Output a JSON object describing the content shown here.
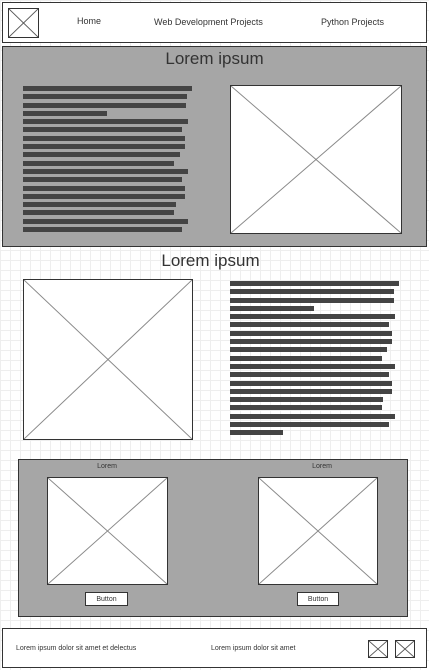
{
  "header": {
    "logo_icon": "image-placeholder-icon",
    "nav": {
      "home": "Home",
      "web_dev": "Web Development Projects",
      "python": "Python Projects"
    }
  },
  "section1": {
    "title": "Lorem ipsum"
  },
  "section2": {
    "title": "Lorem ipsum"
  },
  "cards": [
    {
      "label": "Lorem",
      "button": "Button"
    },
    {
      "label": "Lorem",
      "button": "Button"
    }
  ],
  "footer": {
    "text_left": "Lorem ipsum dolor sit amet et delectus",
    "text_center": "Lorem ipsum dolor sit amet",
    "icons": [
      "image-placeholder-icon",
      "image-placeholder-icon"
    ]
  },
  "colors": {
    "section_gray": "#a6a6a6",
    "text_bar": "#444444",
    "border": "#333333"
  }
}
